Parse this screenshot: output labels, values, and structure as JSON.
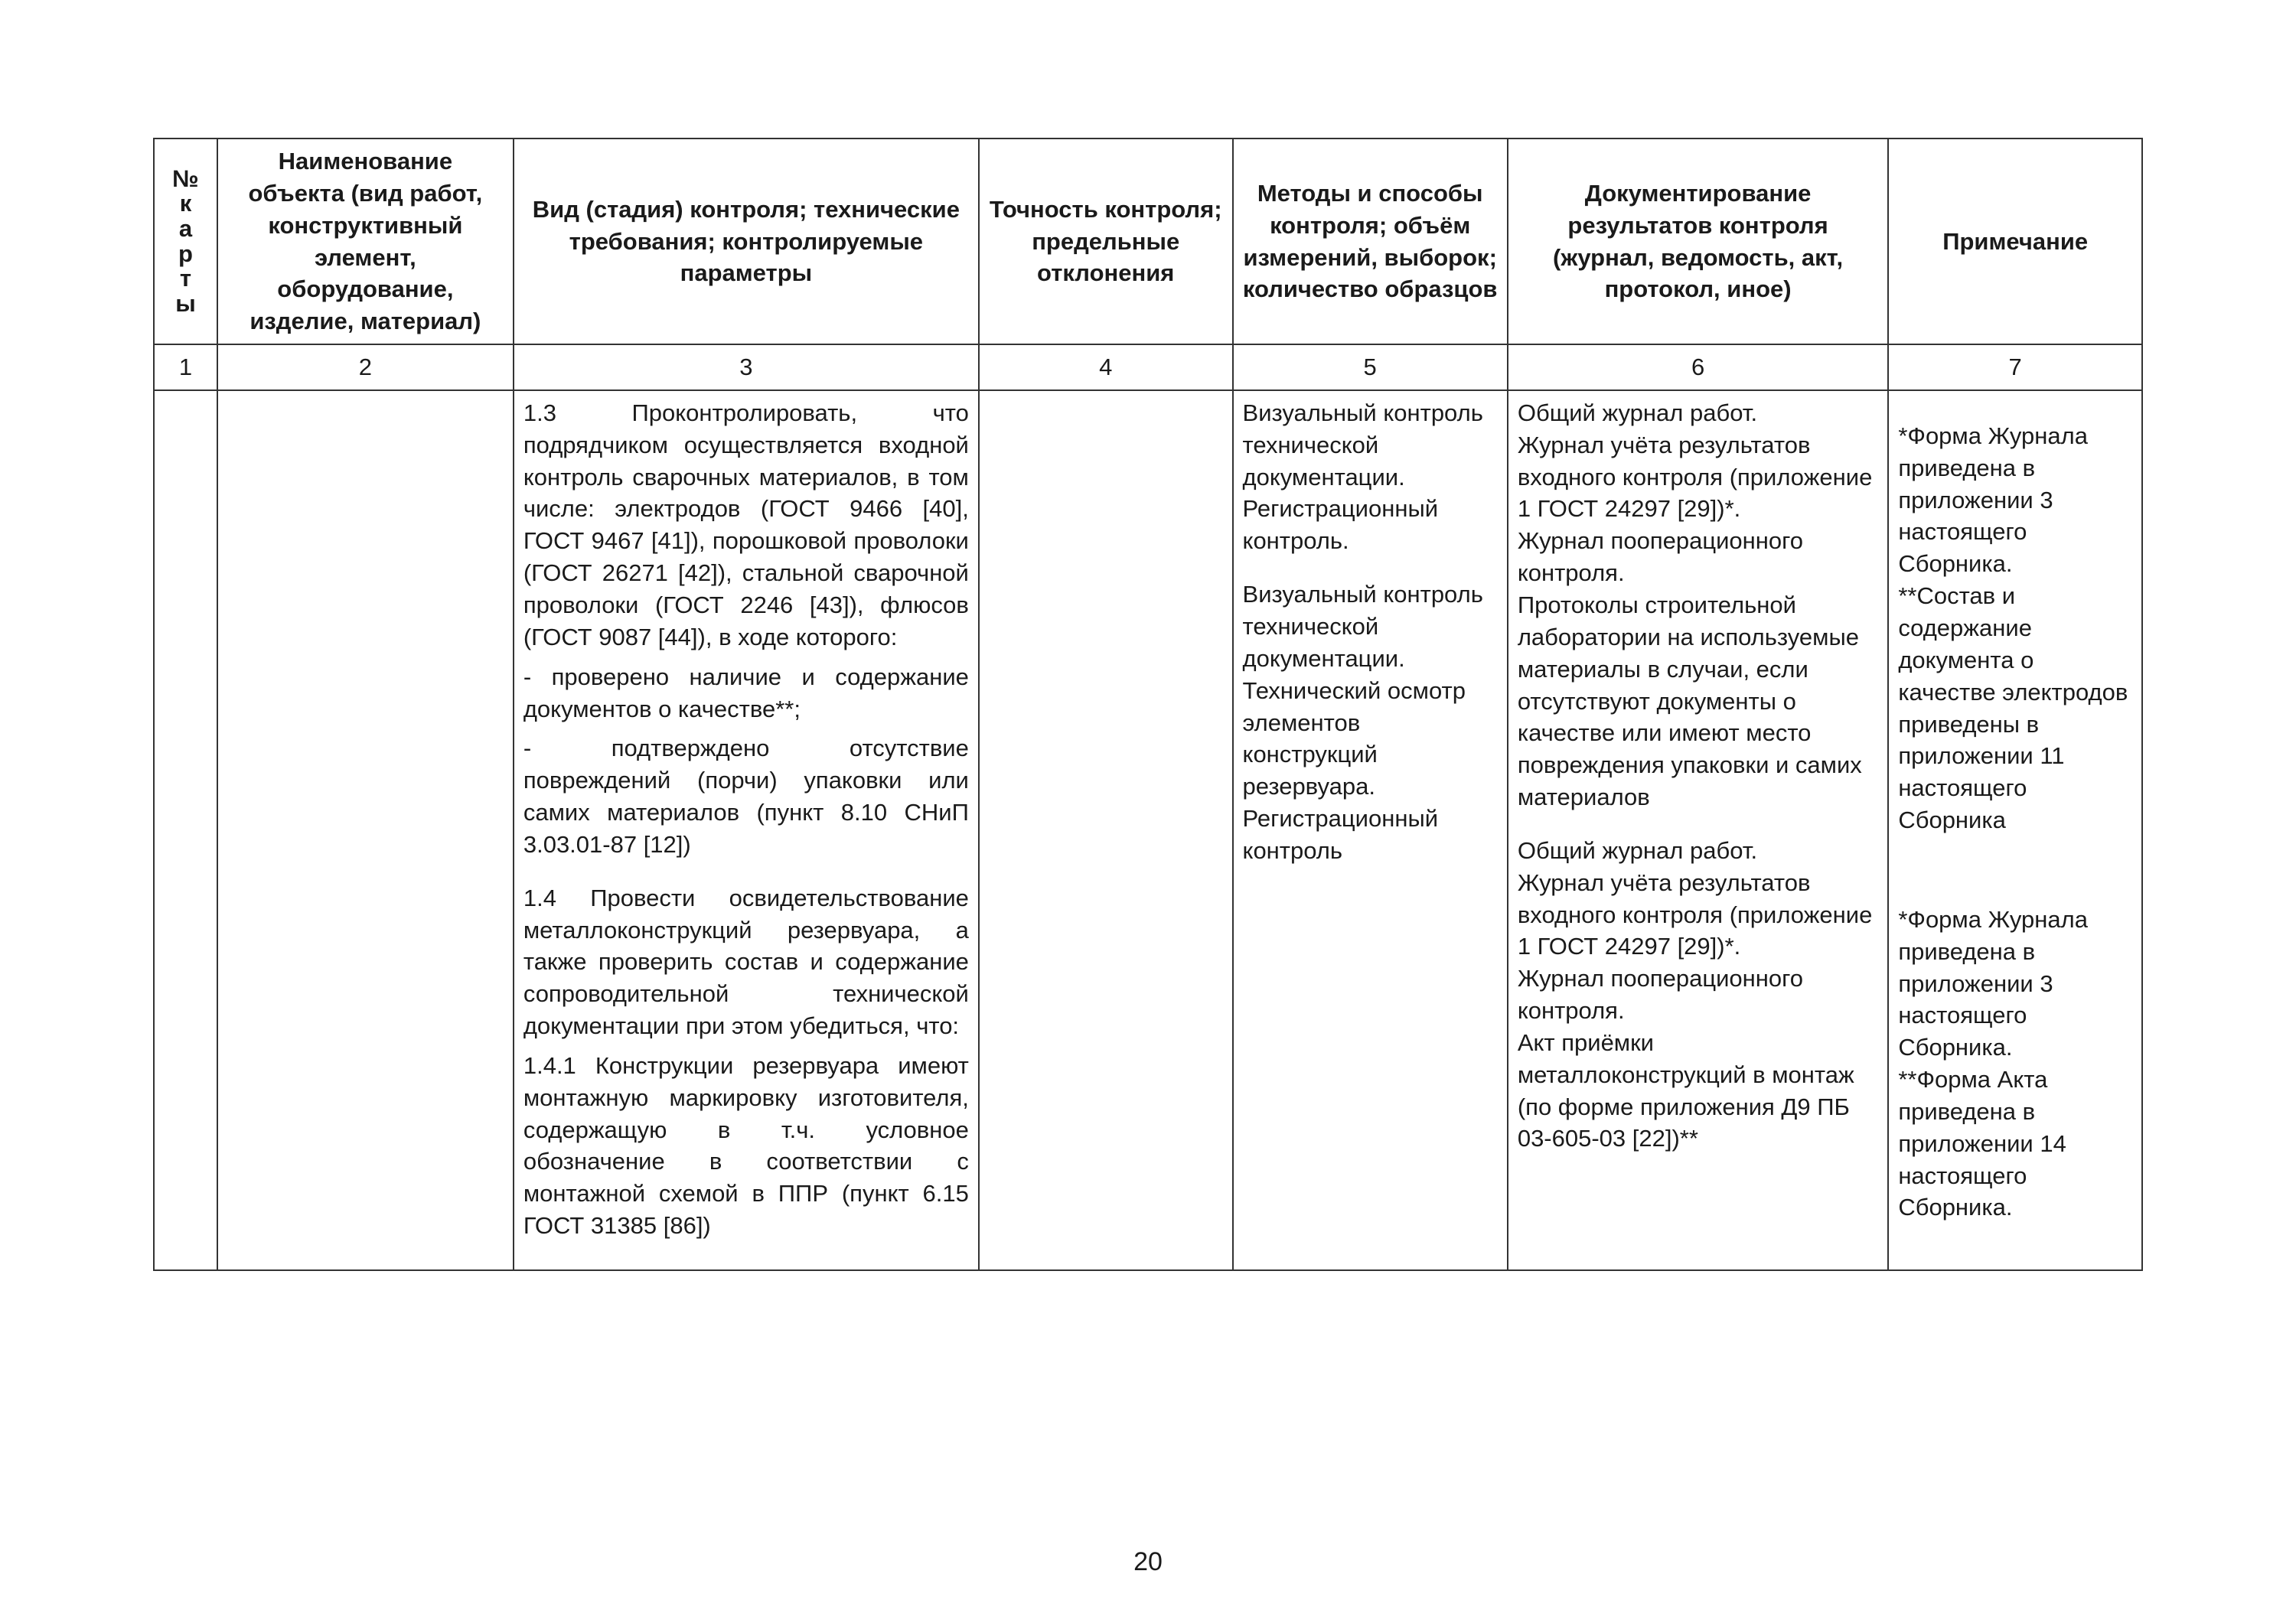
{
  "page_number": "20",
  "table": {
    "columns": {
      "c1": "№\nк\nа\nр\nт\nы",
      "c2": "Наименование объекта (вид работ, конструктивный элемент, оборудование, изделие, материал)",
      "c3": "Вид (стадия) контроля; технические требования; контролируемые параметры",
      "c4": "Точность контроля; предельные отклонения",
      "c5": "Методы и способы контроля; объём измерений, выборок; количество образцов",
      "c6": "Документирование результатов контроля (журнал, ведомость, акт, протокол, иное)",
      "c7": "Примечание"
    },
    "col_nums": {
      "c1": "1",
      "c2": "2",
      "c3": "3",
      "c4": "4",
      "c5": "5",
      "c6": "6",
      "c7": "7"
    },
    "body": {
      "c1": "",
      "c2": "",
      "c3_p1": "1.3 Проконтролировать, что подрядчиком осуществляется входной контроль сварочных материалов, в том числе: электродов (ГОСТ 9466 [40], ГОСТ 9467 [41]), порошковой проволоки (ГОСТ 26271 [42]), стальной сварочной проволоки (ГОСТ 2246 [43]), флюсов (ГОСТ 9087 [44]), в ходе которого:",
      "c3_p1a": "- проверено наличие и содержание документов о качестве**;",
      "c3_p1b": "- подтверждено отсутствие повреждений (порчи) упаковки или самих материалов (пункт 8.10 СНиП 3.03.01-87 [12])",
      "c3_p2": "1.4 Провести освидетельствование металлоконструкций резервуара, а также проверить состав и содержание сопроводительной технической документации при этом убедиться, что:",
      "c3_p2a": "1.4.1 Конструкции резервуара имеют монтажную маркировку изготовителя, содержащую в т.ч. условное обозначение в соответствии с монтажной схемой в ППР (пункт 6.15 ГОСТ 31385 [86])",
      "c4": "",
      "c5_b1": "Визуальный контроль технической документации.\nРегистрационный контроль.",
      "c5_b2": "Визуальный контроль технической документации.\nТехнический осмотр элементов конструкций резервуара.\nРегистрационный контроль",
      "c6_b1": "Общий журнал работ.\nЖурнал учёта результатов входного контроля (приложение 1 ГОСТ 24297 [29])*.\nЖурнал пооперационного контроля.\nПротоколы строительной лаборатории на используемые материалы в случаи, если отсутствуют документы о качестве или имеют место повреждения упаковки и самих материалов",
      "c6_b2": "Общий журнал работ.\nЖурнал учёта результатов входного контроля (приложение 1 ГОСТ 24297 [29])*.\nЖурнал пооперационного контроля.\nАкт приёмки металлоконструкций в монтаж (по форме приложения Д9 ПБ 03-605-03 [22])**",
      "c7_b1": "*Форма Журнала приведена в приложении 3 настоящего Сборника.\n**Состав и содержание документа о качестве электродов приведены в приложении 11 настоящего Сборника",
      "c7_b2": "*Форма Журнала приведена в приложении 3 настоящего Сборника.\n**Форма Акта приведена в приложении 14 настоящего Сборника."
    }
  },
  "style": {
    "font_size_pt": 31,
    "border_color": "#333333",
    "background": "#ffffff",
    "text_color": "#1a1a1a",
    "col_widths_pct": [
      3,
      14,
      22,
      12,
      13,
      18,
      12
    ]
  }
}
